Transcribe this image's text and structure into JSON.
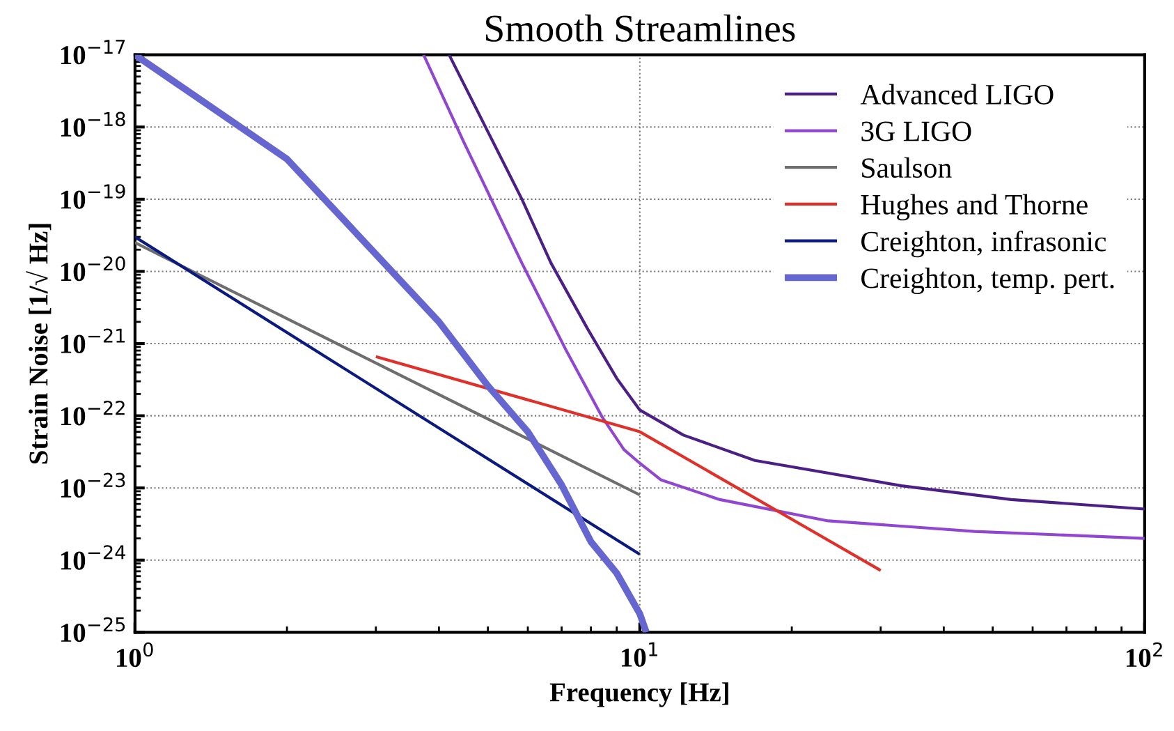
{
  "chart_data": {
    "type": "line",
    "title": "Smooth Streamlines",
    "xlabel": "Frequency [Hz]",
    "ylabel": "Strain Noise [1/√ Hz]",
    "log": "xy",
    "grid": true,
    "legend": "top right",
    "line_style": "solid",
    "marker": "none",
    "xlim": [
      1,
      100
    ],
    "xticks": [
      {
        "value": 1,
        "label": "10$^{0}$"
      },
      {
        "value": 10,
        "label": "10$^{1}$"
      },
      {
        "value": 100,
        "label": "10$^{2}$"
      }
    ],
    "ylim": [
      1e-25,
      1e-17
    ],
    "yticks": [
      {
        "value": 1e-25,
        "label": "10$^{−25}$"
      },
      {
        "value": 1e-24,
        "label": "10$^{−24}$"
      },
      {
        "value": 1e-23,
        "label": "10$^{−23}$"
      },
      {
        "value": 1e-22,
        "label": "10$^{−22}$"
      },
      {
        "value": 1e-21,
        "label": "10$^{−21}$"
      },
      {
        "value": 1e-20,
        "label": "10$^{−20}$"
      },
      {
        "value": 1e-19,
        "label": "10$^{−19}$"
      },
      {
        "value": 1e-18,
        "label": "10$^{−18}$"
      },
      {
        "value": 1e-17,
        "label": "10$^{−17}$"
      }
    ],
    "series": [
      {
        "name": "Advanced LIGO",
        "color": "#4b1f86",
        "x": [
          4.19,
          5.84,
          6.67,
          7.88,
          9.0,
          10,
          12.2,
          16.9,
          33,
          54.4,
          100
        ],
        "values": [
          1e-17,
          1e-19,
          1.3e-20,
          1.6e-21,
          3.3e-22,
          1.2e-22,
          5.4e-23,
          2.4e-23,
          1.07e-23,
          6.9e-24,
          5.1e-24
        ]
      },
      {
        "name": "3G LIGO",
        "color": "#9146d2",
        "x": [
          3.73,
          4.48,
          5.84,
          7.13,
          8.43,
          9.3,
          10,
          11,
          14.4,
          23.6,
          46,
          100
        ],
        "values": [
          1e-17,
          6.2e-19,
          1.3e-20,
          8.3e-22,
          9.5e-23,
          3.4e-23,
          2.2e-23,
          1.3e-23,
          6.9e-24,
          3.5e-24,
          2.5e-24,
          2e-24
        ]
      },
      {
        "name": "Saulson",
        "color": "#6e6e6e",
        "x": [
          1,
          10
        ],
        "values": [
          2.5e-20,
          8e-24
        ]
      },
      {
        "name": "Hughes and Thorne",
        "color": "#e0302a",
        "x": [
          3,
          10,
          30
        ],
        "values": [
          6.6e-22,
          6e-23,
          7.2e-25
        ]
      },
      {
        "name": "Creighton, infrasonic",
        "color": "#0a1a80",
        "x": [
          1,
          10
        ],
        "values": [
          3e-20,
          1.2e-24
        ]
      },
      {
        "name": "Creighton, temp. pert.",
        "color": "#6666d0",
        "x": [
          1,
          2,
          4,
          5,
          6,
          7,
          8,
          9,
          10,
          10.3
        ],
        "values": [
          1e-17,
          3.6e-19,
          2e-21,
          2.6e-22,
          6e-23,
          1.1e-23,
          1.8e-24,
          6.6e-25,
          1.8e-25,
          1e-25
        ]
      }
    ]
  }
}
